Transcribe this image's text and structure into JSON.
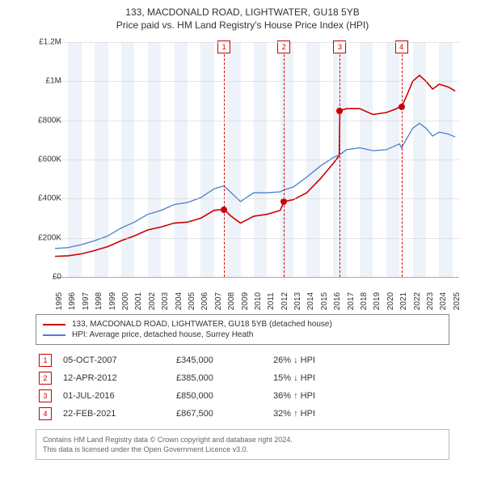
{
  "title_line1": "133, MACDONALD ROAD, LIGHTWATER, GU18 5YB",
  "title_line2": "Price paid vs. HM Land Registry's House Price Index (HPI)",
  "chart": {
    "type": "line",
    "x_min": 1995,
    "x_max": 2025.5,
    "y_min": 0,
    "y_max": 1200000,
    "y_ticks": [
      0,
      200000,
      400000,
      600000,
      800000,
      1000000,
      1200000
    ],
    "y_tick_labels": [
      "£0",
      "£200K",
      "£400K",
      "£600K",
      "£800K",
      "£1M",
      "£1.2M"
    ],
    "x_ticks": [
      1995,
      1996,
      1997,
      1998,
      1999,
      2000,
      2001,
      2002,
      2003,
      2004,
      2005,
      2006,
      2007,
      2008,
      2009,
      2010,
      2011,
      2012,
      2013,
      2014,
      2015,
      2016,
      2017,
      2018,
      2019,
      2020,
      2021,
      2022,
      2023,
      2024,
      2025
    ],
    "background_color": "#ffffff",
    "grid_color": "#cccccc",
    "band_color": "#eef3fa",
    "bands": [
      [
        1996,
        1997
      ],
      [
        1998,
        1999
      ],
      [
        2000,
        2001
      ],
      [
        2002,
        2003
      ],
      [
        2004,
        2005
      ],
      [
        2006,
        2007
      ],
      [
        2008,
        2009
      ],
      [
        2010,
        2011
      ],
      [
        2012,
        2013
      ],
      [
        2014,
        2015
      ],
      [
        2016,
        2017
      ],
      [
        2018,
        2019
      ],
      [
        2020,
        2021
      ],
      [
        2022,
        2023
      ],
      [
        2024,
        2025
      ]
    ],
    "series": [
      {
        "name": "property",
        "color": "#cc0000",
        "width": 1.6,
        "points": [
          [
            1995.0,
            105000
          ],
          [
            1996.0,
            108000
          ],
          [
            1997.0,
            118000
          ],
          [
            1998.0,
            135000
          ],
          [
            1999.0,
            155000
          ],
          [
            2000.0,
            185000
          ],
          [
            2001.0,
            210000
          ],
          [
            2002.0,
            240000
          ],
          [
            2003.0,
            255000
          ],
          [
            2004.0,
            275000
          ],
          [
            2005.0,
            280000
          ],
          [
            2006.0,
            300000
          ],
          [
            2007.0,
            340000
          ],
          [
            2007.76,
            345000
          ],
          [
            2008.3,
            310000
          ],
          [
            2009.0,
            275000
          ],
          [
            2010.0,
            310000
          ],
          [
            2011.0,
            320000
          ],
          [
            2012.0,
            340000
          ],
          [
            2012.28,
            385000
          ],
          [
            2013.0,
            395000
          ],
          [
            2014.0,
            430000
          ],
          [
            2015.0,
            500000
          ],
          [
            2016.0,
            580000
          ],
          [
            2016.45,
            620000
          ],
          [
            2016.5,
            850000
          ],
          [
            2017.0,
            860000
          ],
          [
            2018.0,
            860000
          ],
          [
            2019.0,
            830000
          ],
          [
            2020.0,
            840000
          ],
          [
            2020.8,
            860000
          ],
          [
            2021.0,
            870000
          ],
          [
            2021.15,
            867500
          ],
          [
            2021.5,
            920000
          ],
          [
            2022.0,
            1000000
          ],
          [
            2022.5,
            1030000
          ],
          [
            2023.0,
            1000000
          ],
          [
            2023.5,
            960000
          ],
          [
            2024.0,
            985000
          ],
          [
            2024.7,
            970000
          ],
          [
            2025.2,
            950000
          ]
        ]
      },
      {
        "name": "hpi",
        "color": "#4b7fc9",
        "width": 1.3,
        "points": [
          [
            1995.0,
            145000
          ],
          [
            1996.0,
            150000
          ],
          [
            1997.0,
            165000
          ],
          [
            1998.0,
            185000
          ],
          [
            1999.0,
            210000
          ],
          [
            2000.0,
            250000
          ],
          [
            2001.0,
            280000
          ],
          [
            2002.0,
            320000
          ],
          [
            2003.0,
            340000
          ],
          [
            2004.0,
            370000
          ],
          [
            2005.0,
            380000
          ],
          [
            2006.0,
            405000
          ],
          [
            2007.0,
            450000
          ],
          [
            2007.76,
            465000
          ],
          [
            2008.3,
            430000
          ],
          [
            2009.0,
            385000
          ],
          [
            2010.0,
            430000
          ],
          [
            2011.0,
            430000
          ],
          [
            2012.0,
            435000
          ],
          [
            2012.28,
            445000
          ],
          [
            2013.0,
            460000
          ],
          [
            2014.0,
            510000
          ],
          [
            2015.0,
            565000
          ],
          [
            2016.0,
            610000
          ],
          [
            2016.5,
            625000
          ],
          [
            2017.0,
            650000
          ],
          [
            2018.0,
            660000
          ],
          [
            2019.0,
            645000
          ],
          [
            2020.0,
            650000
          ],
          [
            2021.0,
            680000
          ],
          [
            2021.15,
            660000
          ],
          [
            2022.0,
            760000
          ],
          [
            2022.5,
            785000
          ],
          [
            2023.0,
            760000
          ],
          [
            2023.5,
            720000
          ],
          [
            2024.0,
            740000
          ],
          [
            2024.7,
            730000
          ],
          [
            2025.2,
            715000
          ]
        ]
      }
    ],
    "event_lines": [
      {
        "n": 1,
        "x": 2007.76,
        "y": 345000
      },
      {
        "n": 2,
        "x": 2012.28,
        "y": 385000
      },
      {
        "n": 3,
        "x": 2016.5,
        "y": 850000
      },
      {
        "n": 4,
        "x": 2021.15,
        "y": 867500
      }
    ],
    "event_line_color": "#cc0000",
    "event_box_top_offset": -2,
    "marker_color": "#cc0000"
  },
  "legend": {
    "items": [
      {
        "color": "#cc0000",
        "label": "133, MACDONALD ROAD, LIGHTWATER, GU18 5YB (detached house)"
      },
      {
        "color": "#4b7fc9",
        "label": "HPI: Average price, detached house, Surrey Heath"
      }
    ]
  },
  "events_table": [
    {
      "n": "1",
      "date": "05-OCT-2007",
      "price": "£345,000",
      "pct": "26%",
      "dir": "down",
      "suffix": "HPI"
    },
    {
      "n": "2",
      "date": "12-APR-2012",
      "price": "£385,000",
      "pct": "15%",
      "dir": "down",
      "suffix": "HPI"
    },
    {
      "n": "3",
      "date": "01-JUL-2016",
      "price": "£850,000",
      "pct": "36%",
      "dir": "up",
      "suffix": "HPI"
    },
    {
      "n": "4",
      "date": "22-FEB-2021",
      "price": "£867,500",
      "pct": "32%",
      "dir": "up",
      "suffix": "HPI"
    }
  ],
  "footer_line1": "Contains HM Land Registry data © Crown copyright and database right 2024.",
  "footer_line2": "This data is licensed under the Open Government Licence v3.0."
}
